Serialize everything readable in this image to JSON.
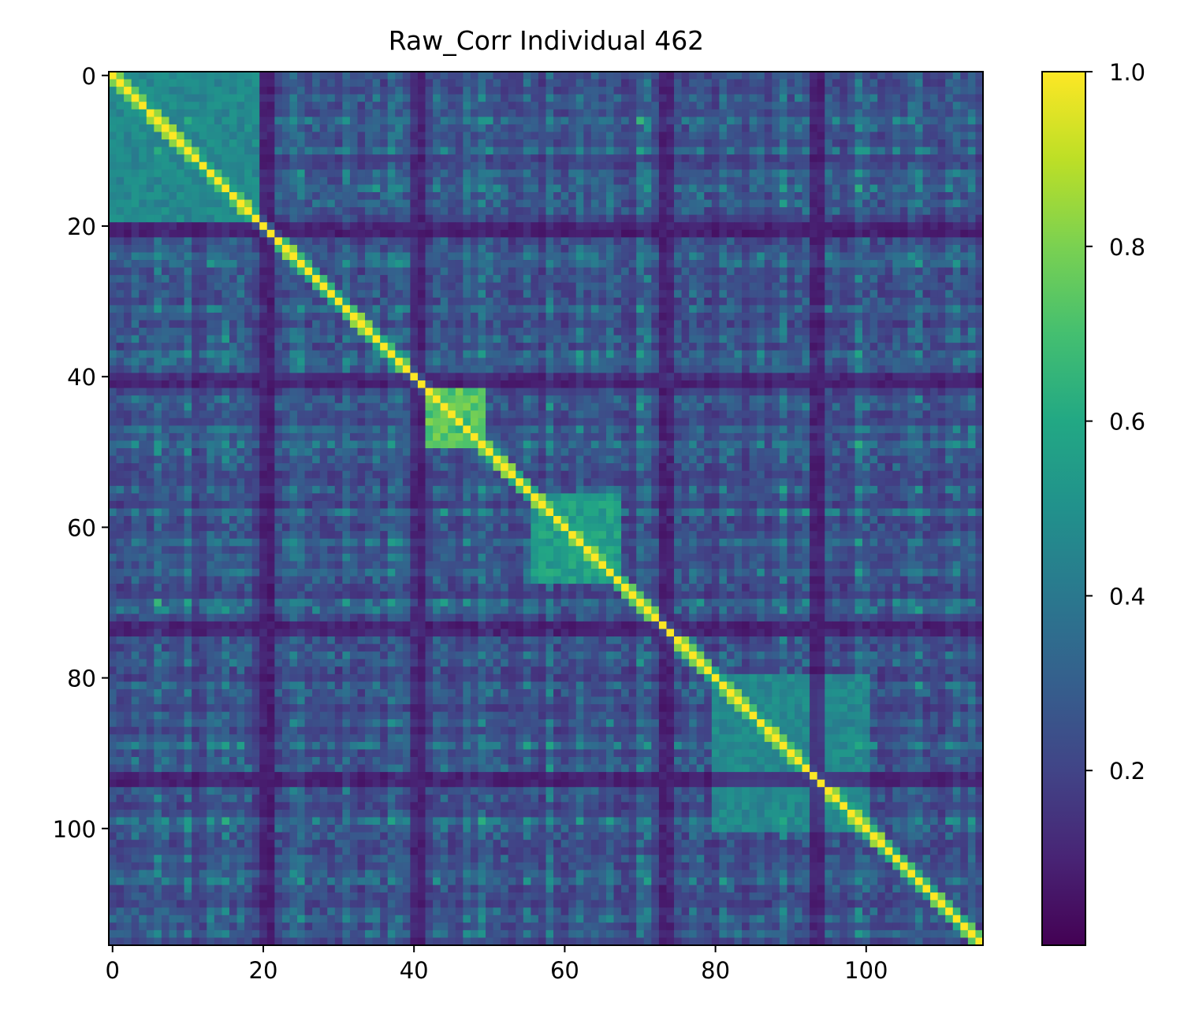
{
  "chart_data": {
    "type": "heatmap",
    "title": "Raw_Corr Individual 462",
    "xlabel": "",
    "ylabel": "",
    "matrix_size": 116,
    "xlim": [
      -0.5,
      115.5
    ],
    "ylim": [
      115.5,
      -0.5
    ],
    "x_ticks": [
      0,
      20,
      40,
      60,
      80,
      100
    ],
    "y_ticks": [
      0,
      20,
      40,
      60,
      80,
      100
    ],
    "x_tick_labels": [
      "0",
      "20",
      "40",
      "60",
      "80",
      "100"
    ],
    "y_tick_labels": [
      "0",
      "20",
      "40",
      "60",
      "80",
      "100"
    ],
    "colormap": "viridis",
    "value_range": [
      0.0,
      1.0
    ],
    "diagonal_value": 1.0,
    "colorbar": {
      "ticks": [
        0.2,
        0.4,
        0.6,
        0.8,
        1.0
      ],
      "tick_labels": [
        "0.2",
        "0.4",
        "0.6",
        "0.8",
        "1.0"
      ]
    },
    "high_correlation_blocks": [
      {
        "rows": [
          42,
          49
        ],
        "cols": [
          42,
          49
        ],
        "approx_value": 0.78
      },
      {
        "rows": [
          56,
          67
        ],
        "cols": [
          56,
          67
        ],
        "approx_value": 0.6
      },
      {
        "rows": [
          0,
          19
        ],
        "cols": [
          0,
          19
        ],
        "approx_value": 0.5
      },
      {
        "rows": [
          80,
          100
        ],
        "cols": [
          80,
          100
        ],
        "approx_value": 0.5
      }
    ],
    "low_correlation_bands": [
      20,
      21,
      40,
      41,
      73,
      74,
      93,
      94
    ],
    "grid": false,
    "legend": "colorbar-right"
  }
}
